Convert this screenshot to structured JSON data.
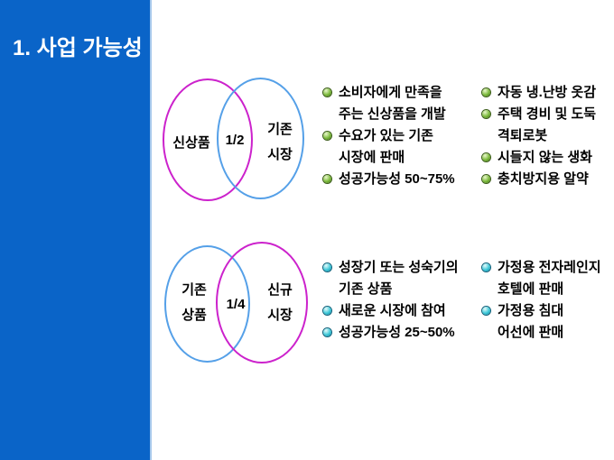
{
  "colors": {
    "panel_blue": "#0a64c8",
    "panel_edge_light_blue": "#a6c8ec",
    "title_text": "#ffffff",
    "body_text": "#000000",
    "magenta_ellipse": "#cc22cc",
    "light_blue_ellipse": "#55a0e8",
    "green_bullet": "#7ab93a",
    "cyan_bullet": "#3cc8d8"
  },
  "sidebar": {
    "title": "1. 사업 가능성"
  },
  "venn_top": {
    "left_label": "신상품",
    "overlap_label": "1/2",
    "right_label_lines": [
      "기존",
      "시장"
    ],
    "left_color": "#cc22cc",
    "right_color": "#55a0e8"
  },
  "venn_bottom": {
    "left_label_lines": [
      "기존",
      "상품"
    ],
    "overlap_label": "1/4",
    "right_label_lines": [
      "신규",
      "시장"
    ],
    "left_color": "#55a0e8",
    "right_color": "#cc22cc"
  },
  "lists": {
    "top_strategy": [
      [
        "소비자에게 만족을",
        "주는 신상품을 개발"
      ],
      [
        "수요가 있는 기존",
        "시장에 판매"
      ],
      [
        "성공가능성 50~75%"
      ]
    ],
    "top_examples": [
      [
        "자동 냉.난방 옷감"
      ],
      [
        "주택 경비 및 도둑",
        "격퇴로봇"
      ],
      [
        "시들지 않는 생화"
      ],
      [
        "충치방지용 알약"
      ]
    ],
    "bottom_strategy": [
      [
        "성장기 또는 성숙기의",
        "기존 상품"
      ],
      [
        "새로운 시장에 참여"
      ],
      [
        "성공가능성 25~50%"
      ]
    ],
    "bottom_examples": [
      [
        "가정용 전자레인지",
        "호텔에 판매"
      ],
      [
        "가정용 침대",
        "어선에 판매"
      ]
    ]
  }
}
